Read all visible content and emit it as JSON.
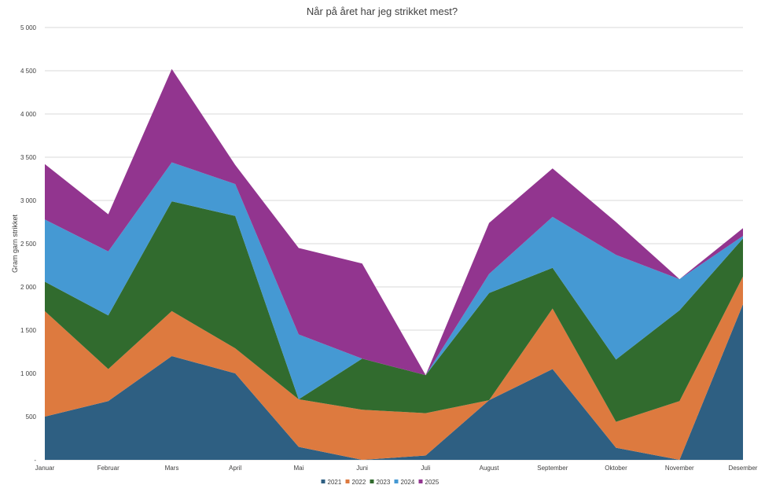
{
  "chart_data": {
    "type": "area",
    "stacked": true,
    "title": "Når på året har jeg strikket mest?",
    "ylabel": "Gram garn strikket",
    "xlabel": "",
    "categories": [
      "Januar",
      "Februar",
      "Mars",
      "April",
      "Mai",
      "Juni",
      "Juli",
      "August",
      "September",
      "Oktober",
      "November",
      "Desember"
    ],
    "ylim": [
      0,
      5000
    ],
    "yticks": [
      0,
      500,
      1000,
      1500,
      2000,
      2500,
      3000,
      3500,
      4000,
      4500,
      5000
    ],
    "ytick_labels": [
      "-",
      "500",
      "1 000",
      "1 500",
      "2 000",
      "2 500",
      "3 000",
      "3 500",
      "4 000",
      "4 500",
      "5 000"
    ],
    "grid": true,
    "legend_position": "bottom",
    "series": [
      {
        "name": "2021",
        "color": "#2e5f82",
        "values": [
          500,
          680,
          1200,
          1000,
          150,
          0,
          50,
          690,
          1050,
          140,
          0,
          1800
        ]
      },
      {
        "name": "2022",
        "color": "#dd7a3f",
        "values": [
          1220,
          370,
          520,
          290,
          550,
          580,
          490,
          0,
          700,
          300,
          680,
          320
        ]
      },
      {
        "name": "2023",
        "color": "#316b2e",
        "values": [
          340,
          620,
          1270,
          1530,
          0,
          590,
          440,
          1240,
          470,
          720,
          1050,
          440
        ]
      },
      {
        "name": "2024",
        "color": "#4599d3",
        "values": [
          720,
          740,
          450,
          370,
          750,
          0,
          0,
          220,
          590,
          1210,
          360,
          30
        ]
      },
      {
        "name": "2025",
        "color": "#92358f",
        "values": [
          640,
          430,
          1080,
          220,
          1000,
          1100,
          0,
          590,
          560,
          380,
          0,
          90
        ]
      }
    ]
  }
}
